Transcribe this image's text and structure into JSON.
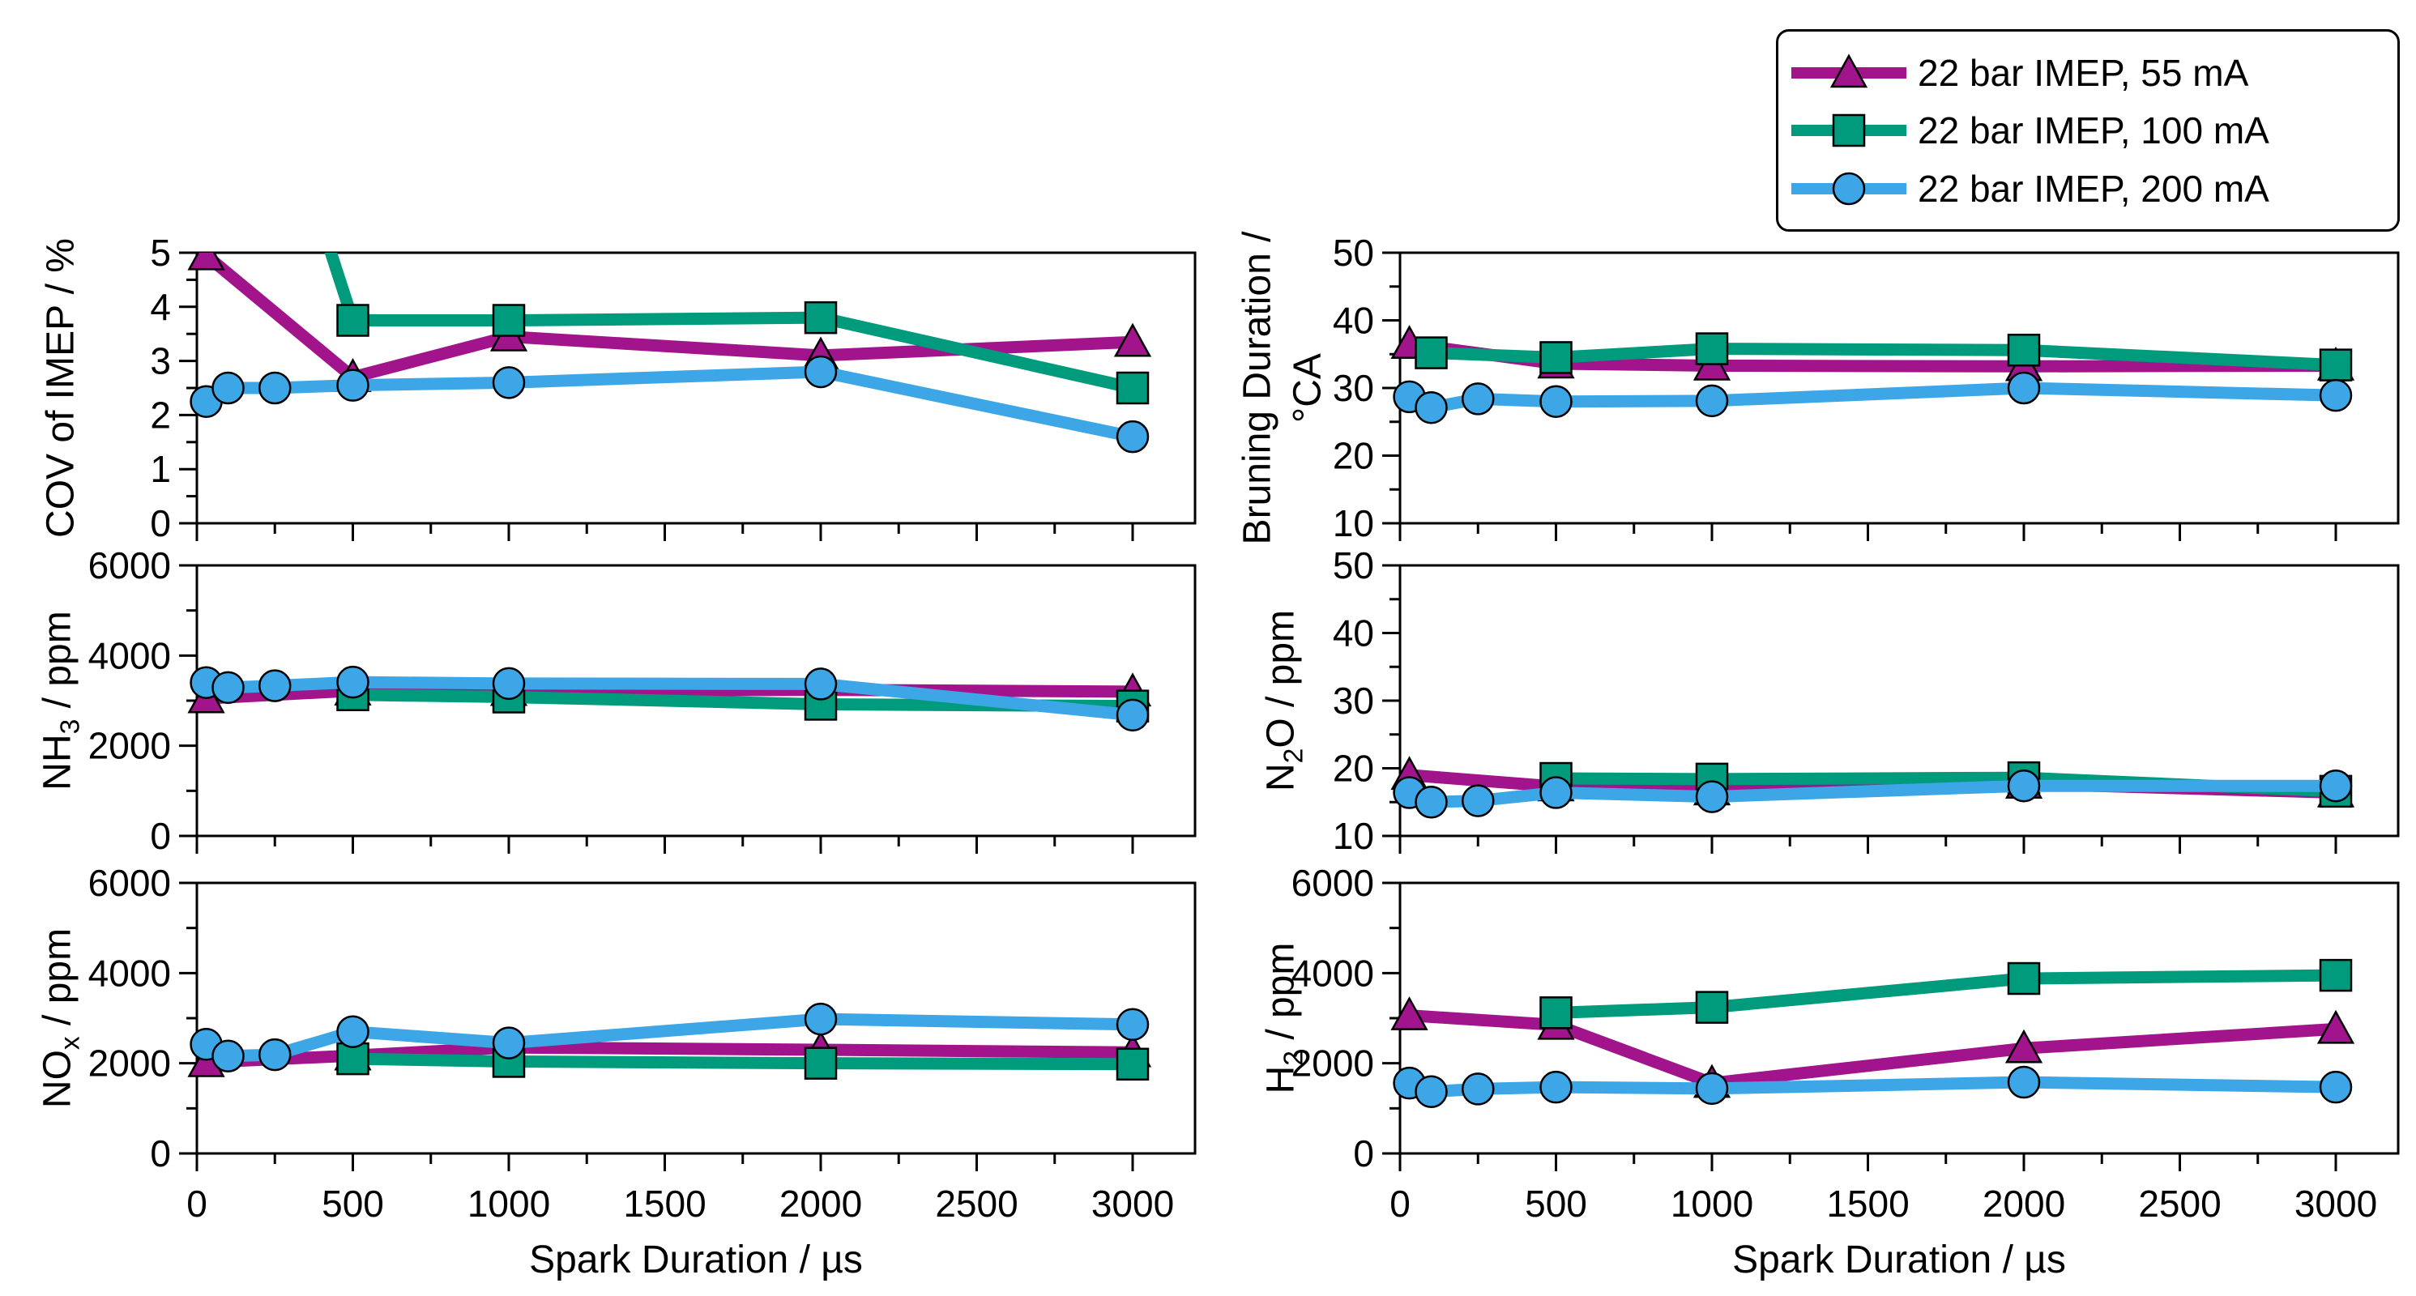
{
  "x_axis_label": "Spark Duration / µs",
  "colors": {
    "series_55mA": "#A2148C",
    "series_100mA": "#009A7D",
    "series_200mA": "#3CA6E6",
    "axis": "#000000",
    "background": "#FFFFFF"
  },
  "legend": {
    "items": [
      {
        "label": "22 bar IMEP, 55 mA",
        "marker": "triangle",
        "color": "#A2148C"
      },
      {
        "label": "22 bar IMEP, 100 mA",
        "marker": "square",
        "color": "#009A7D"
      },
      {
        "label": "22 bar IMEP, 200 mA",
        "marker": "circle",
        "color": "#3CA6E6"
      }
    ]
  },
  "chart_data": [
    {
      "id": "cov",
      "type": "line",
      "position": "top-left",
      "ylabel_parts": [
        {
          "t": "COV of IMEP / %"
        }
      ],
      "ylim": [
        0,
        5
      ],
      "yticks": [
        0,
        1,
        2,
        3,
        4,
        5
      ],
      "ytick_labels": [
        "0",
        "1",
        "2",
        "3",
        "4",
        "5"
      ],
      "yminor_step": 0.5,
      "xlim": [
        0,
        3200
      ],
      "xticks": [
        0,
        500,
        1000,
        1500,
        2000,
        2500,
        3000
      ],
      "xtick_labels": [
        "0",
        "500",
        "1000",
        "1500",
        "2000",
        "2500",
        "3000"
      ],
      "xminor": [
        250,
        750,
        1250,
        1750,
        2250,
        2750
      ],
      "show_x_tick_labels": false,
      "grid": false,
      "series": [
        {
          "name": "22 bar IMEP, 55 mA",
          "marker": "triangle",
          "color": "#A2148C",
          "x": [
            30,
            500,
            1000,
            2000,
            3000
          ],
          "y": [
            4.95,
            2.7,
            3.45,
            3.1,
            3.35
          ]
        },
        {
          "name": "22 bar IMEP, 100 mA",
          "marker": "square",
          "color": "#009A7D",
          "x": [
            250,
            500,
            1000,
            2000,
            3000
          ],
          "y": [
            8.2,
            3.75,
            3.75,
            3.8,
            2.5
          ]
        },
        {
          "name": "22 bar IMEP, 200 mA",
          "marker": "circle",
          "color": "#3CA6E6",
          "x": [
            30,
            100,
            250,
            500,
            1000,
            2000,
            3000
          ],
          "y": [
            2.25,
            2.5,
            2.5,
            2.55,
            2.6,
            2.8,
            1.6
          ]
        }
      ]
    },
    {
      "id": "bruning",
      "type": "line",
      "position": "top-right",
      "ylabel_parts": [
        {
          "t": "Bruning Duration /"
        },
        {
          "t": "°CA",
          "line2": true
        }
      ],
      "ylim": [
        10,
        50
      ],
      "yticks": [
        10,
        20,
        30,
        40,
        50
      ],
      "ytick_labels": [
        "10",
        "20",
        "30",
        "40",
        "50"
      ],
      "yminor_step": 5,
      "xlim": [
        0,
        3200
      ],
      "xticks": [
        0,
        500,
        1000,
        1500,
        2000,
        2500,
        3000
      ],
      "xtick_labels": [
        "0",
        "500",
        "1000",
        "1500",
        "2000",
        "2500",
        "3000"
      ],
      "xminor": [
        250,
        750,
        1250,
        1750,
        2250,
        2750
      ],
      "show_x_tick_labels": false,
      "grid": false,
      "series": [
        {
          "name": "22 bar IMEP, 55 mA",
          "marker": "triangle",
          "color": "#A2148C",
          "x": [
            30,
            500,
            1000,
            2000,
            3000
          ],
          "y": [
            36.5,
            33.6,
            33.3,
            33.2,
            33.3
          ]
        },
        {
          "name": "22 bar IMEP, 100 mA",
          "marker": "square",
          "color": "#009A7D",
          "x": [
            100,
            500,
            1000,
            2000,
            3000
          ],
          "y": [
            35.2,
            34.5,
            35.8,
            35.6,
            33.4
          ]
        },
        {
          "name": "22 bar IMEP, 200 mA",
          "marker": "circle",
          "color": "#3CA6E6",
          "x": [
            30,
            100,
            250,
            500,
            1000,
            2000,
            3000
          ],
          "y": [
            28.7,
            27.1,
            28.4,
            28.0,
            28.1,
            30.0,
            28.9
          ]
        }
      ]
    },
    {
      "id": "nh3",
      "type": "line",
      "position": "middle-left",
      "ylabel_parts": [
        {
          "t": "NH"
        },
        {
          "t": "3",
          "sub": true
        },
        {
          "t": " / ppm"
        }
      ],
      "ylim": [
        0,
        6000
      ],
      "yticks": [
        0,
        2000,
        4000,
        6000
      ],
      "ytick_labels": [
        "0",
        "2000",
        "4000",
        "6000"
      ],
      "yminor_step": 1000,
      "xlim": [
        0,
        3200
      ],
      "xticks": [
        0,
        500,
        1000,
        1500,
        2000,
        2500,
        3000
      ],
      "xtick_labels": [
        "0",
        "500",
        "1000",
        "1500",
        "2000",
        "2500",
        "3000"
      ],
      "xminor": [
        250,
        750,
        1250,
        1750,
        2250,
        2750
      ],
      "show_x_tick_labels": false,
      "grid": false,
      "series": [
        {
          "name": "22 bar IMEP, 55 mA",
          "marker": "triangle",
          "color": "#A2148C",
          "x": [
            30,
            500,
            1000,
            2000,
            3000
          ],
          "y": [
            3050,
            3220,
            3210,
            3240,
            3200
          ]
        },
        {
          "name": "22 bar IMEP, 100 mA",
          "marker": "square",
          "color": "#009A7D",
          "x": [
            500,
            1000,
            2000,
            3000
          ],
          "y": [
            3130,
            3080,
            2920,
            2880
          ]
        },
        {
          "name": "22 bar IMEP, 200 mA",
          "marker": "circle",
          "color": "#3CA6E6",
          "x": [
            30,
            100,
            250,
            500,
            1000,
            2000,
            3000
          ],
          "y": [
            3400,
            3290,
            3330,
            3410,
            3380,
            3370,
            2680
          ]
        }
      ]
    },
    {
      "id": "n2o",
      "type": "line",
      "position": "middle-right",
      "ylabel_parts": [
        {
          "t": "N"
        },
        {
          "t": "2",
          "sub": true
        },
        {
          "t": "O / ppm"
        }
      ],
      "ylim": [
        10,
        50
      ],
      "yticks": [
        10,
        20,
        30,
        40,
        50
      ],
      "ytick_labels": [
        "10",
        "20",
        "30",
        "40",
        "50"
      ],
      "yminor_step": 5,
      "xlim": [
        0,
        3200
      ],
      "xticks": [
        0,
        500,
        1000,
        1500,
        2000,
        2500,
        3000
      ],
      "xtick_labels": [
        "0",
        "500",
        "1000",
        "1500",
        "2000",
        "2500",
        "3000"
      ],
      "xminor": [
        250,
        750,
        1250,
        1750,
        2250,
        2750
      ],
      "show_x_tick_labels": false,
      "grid": false,
      "series": [
        {
          "name": "22 bar IMEP, 55 mA",
          "marker": "triangle",
          "color": "#A2148C",
          "x": [
            30,
            500,
            1000,
            2000,
            3000
          ],
          "y": [
            19.0,
            17.3,
            16.7,
            17.7,
            16.4
          ]
        },
        {
          "name": "22 bar IMEP, 100 mA",
          "marker": "square",
          "color": "#009A7D",
          "x": [
            500,
            1000,
            2000,
            3000
          ],
          "y": [
            18.5,
            18.4,
            18.6,
            16.6
          ]
        },
        {
          "name": "22 bar IMEP, 200 mA",
          "marker": "circle",
          "color": "#3CA6E6",
          "x": [
            30,
            100,
            250,
            500,
            1000,
            2000,
            3000
          ],
          "y": [
            16.4,
            15.0,
            15.2,
            16.4,
            15.8,
            17.4,
            17.4
          ]
        }
      ]
    },
    {
      "id": "nox",
      "type": "line",
      "position": "bottom-left",
      "ylabel_parts": [
        {
          "t": "NO"
        },
        {
          "t": "x",
          "sub": true
        },
        {
          "t": " / ppm"
        }
      ],
      "ylim": [
        0,
        6000
      ],
      "yticks": [
        0,
        2000,
        4000,
        6000
      ],
      "ytick_labels": [
        "0",
        "2000",
        "4000",
        "6000"
      ],
      "yminor_step": 1000,
      "xlim": [
        0,
        3200
      ],
      "xticks": [
        0,
        500,
        1000,
        1500,
        2000,
        2500,
        3000
      ],
      "xtick_labels": [
        "0",
        "500",
        "1000",
        "1500",
        "2000",
        "2500",
        "3000"
      ],
      "xminor": [
        250,
        750,
        1250,
        1750,
        2250,
        2750
      ],
      "show_x_tick_labels": true,
      "grid": false,
      "series": [
        {
          "name": "22 bar IMEP, 55 mA",
          "marker": "triangle",
          "color": "#A2148C",
          "x": [
            30,
            500,
            1000,
            2000,
            3000
          ],
          "y": [
            2020,
            2170,
            2350,
            2300,
            2240
          ]
        },
        {
          "name": "22 bar IMEP, 100 mA",
          "marker": "square",
          "color": "#009A7D",
          "x": [
            500,
            1000,
            2000,
            3000
          ],
          "y": [
            2100,
            2040,
            2000,
            1980
          ]
        },
        {
          "name": "22 bar IMEP, 200 mA",
          "marker": "circle",
          "color": "#3CA6E6",
          "x": [
            30,
            100,
            250,
            500,
            1000,
            2000,
            3000
          ],
          "y": [
            2420,
            2160,
            2190,
            2700,
            2450,
            2980,
            2860
          ]
        }
      ]
    },
    {
      "id": "h2",
      "type": "line",
      "position": "bottom-right",
      "ylabel_parts": [
        {
          "t": "H"
        },
        {
          "t": "2",
          "sub": true
        },
        {
          "t": " / ppm"
        }
      ],
      "ylim": [
        0,
        6000
      ],
      "yticks": [
        0,
        2000,
        4000,
        6000
      ],
      "ytick_labels": [
        "0",
        "2000",
        "4000",
        "6000"
      ],
      "yminor_step": 1000,
      "xlim": [
        0,
        3200
      ],
      "xticks": [
        0,
        500,
        1000,
        1500,
        2000,
        2500,
        3000
      ],
      "xtick_labels": [
        "0",
        "500",
        "1000",
        "1500",
        "2000",
        "2500",
        "3000"
      ],
      "xminor": [
        250,
        750,
        1250,
        1750,
        2250,
        2750
      ],
      "show_x_tick_labels": true,
      "grid": false,
      "series": [
        {
          "name": "22 bar IMEP, 55 mA",
          "marker": "triangle",
          "color": "#A2148C",
          "x": [
            30,
            500,
            1000,
            2000,
            3000
          ],
          "y": [
            3060,
            2850,
            1560,
            2330,
            2760
          ]
        },
        {
          "name": "22 bar IMEP, 100 mA",
          "marker": "square",
          "color": "#009A7D",
          "x": [
            500,
            1000,
            2000,
            3000
          ],
          "y": [
            3120,
            3240,
            3880,
            3950
          ]
        },
        {
          "name": "22 bar IMEP, 200 mA",
          "marker": "circle",
          "color": "#3CA6E6",
          "x": [
            30,
            100,
            250,
            500,
            1000,
            2000,
            3000
          ],
          "y": [
            1560,
            1370,
            1430,
            1470,
            1440,
            1580,
            1470
          ]
        }
      ]
    }
  ]
}
